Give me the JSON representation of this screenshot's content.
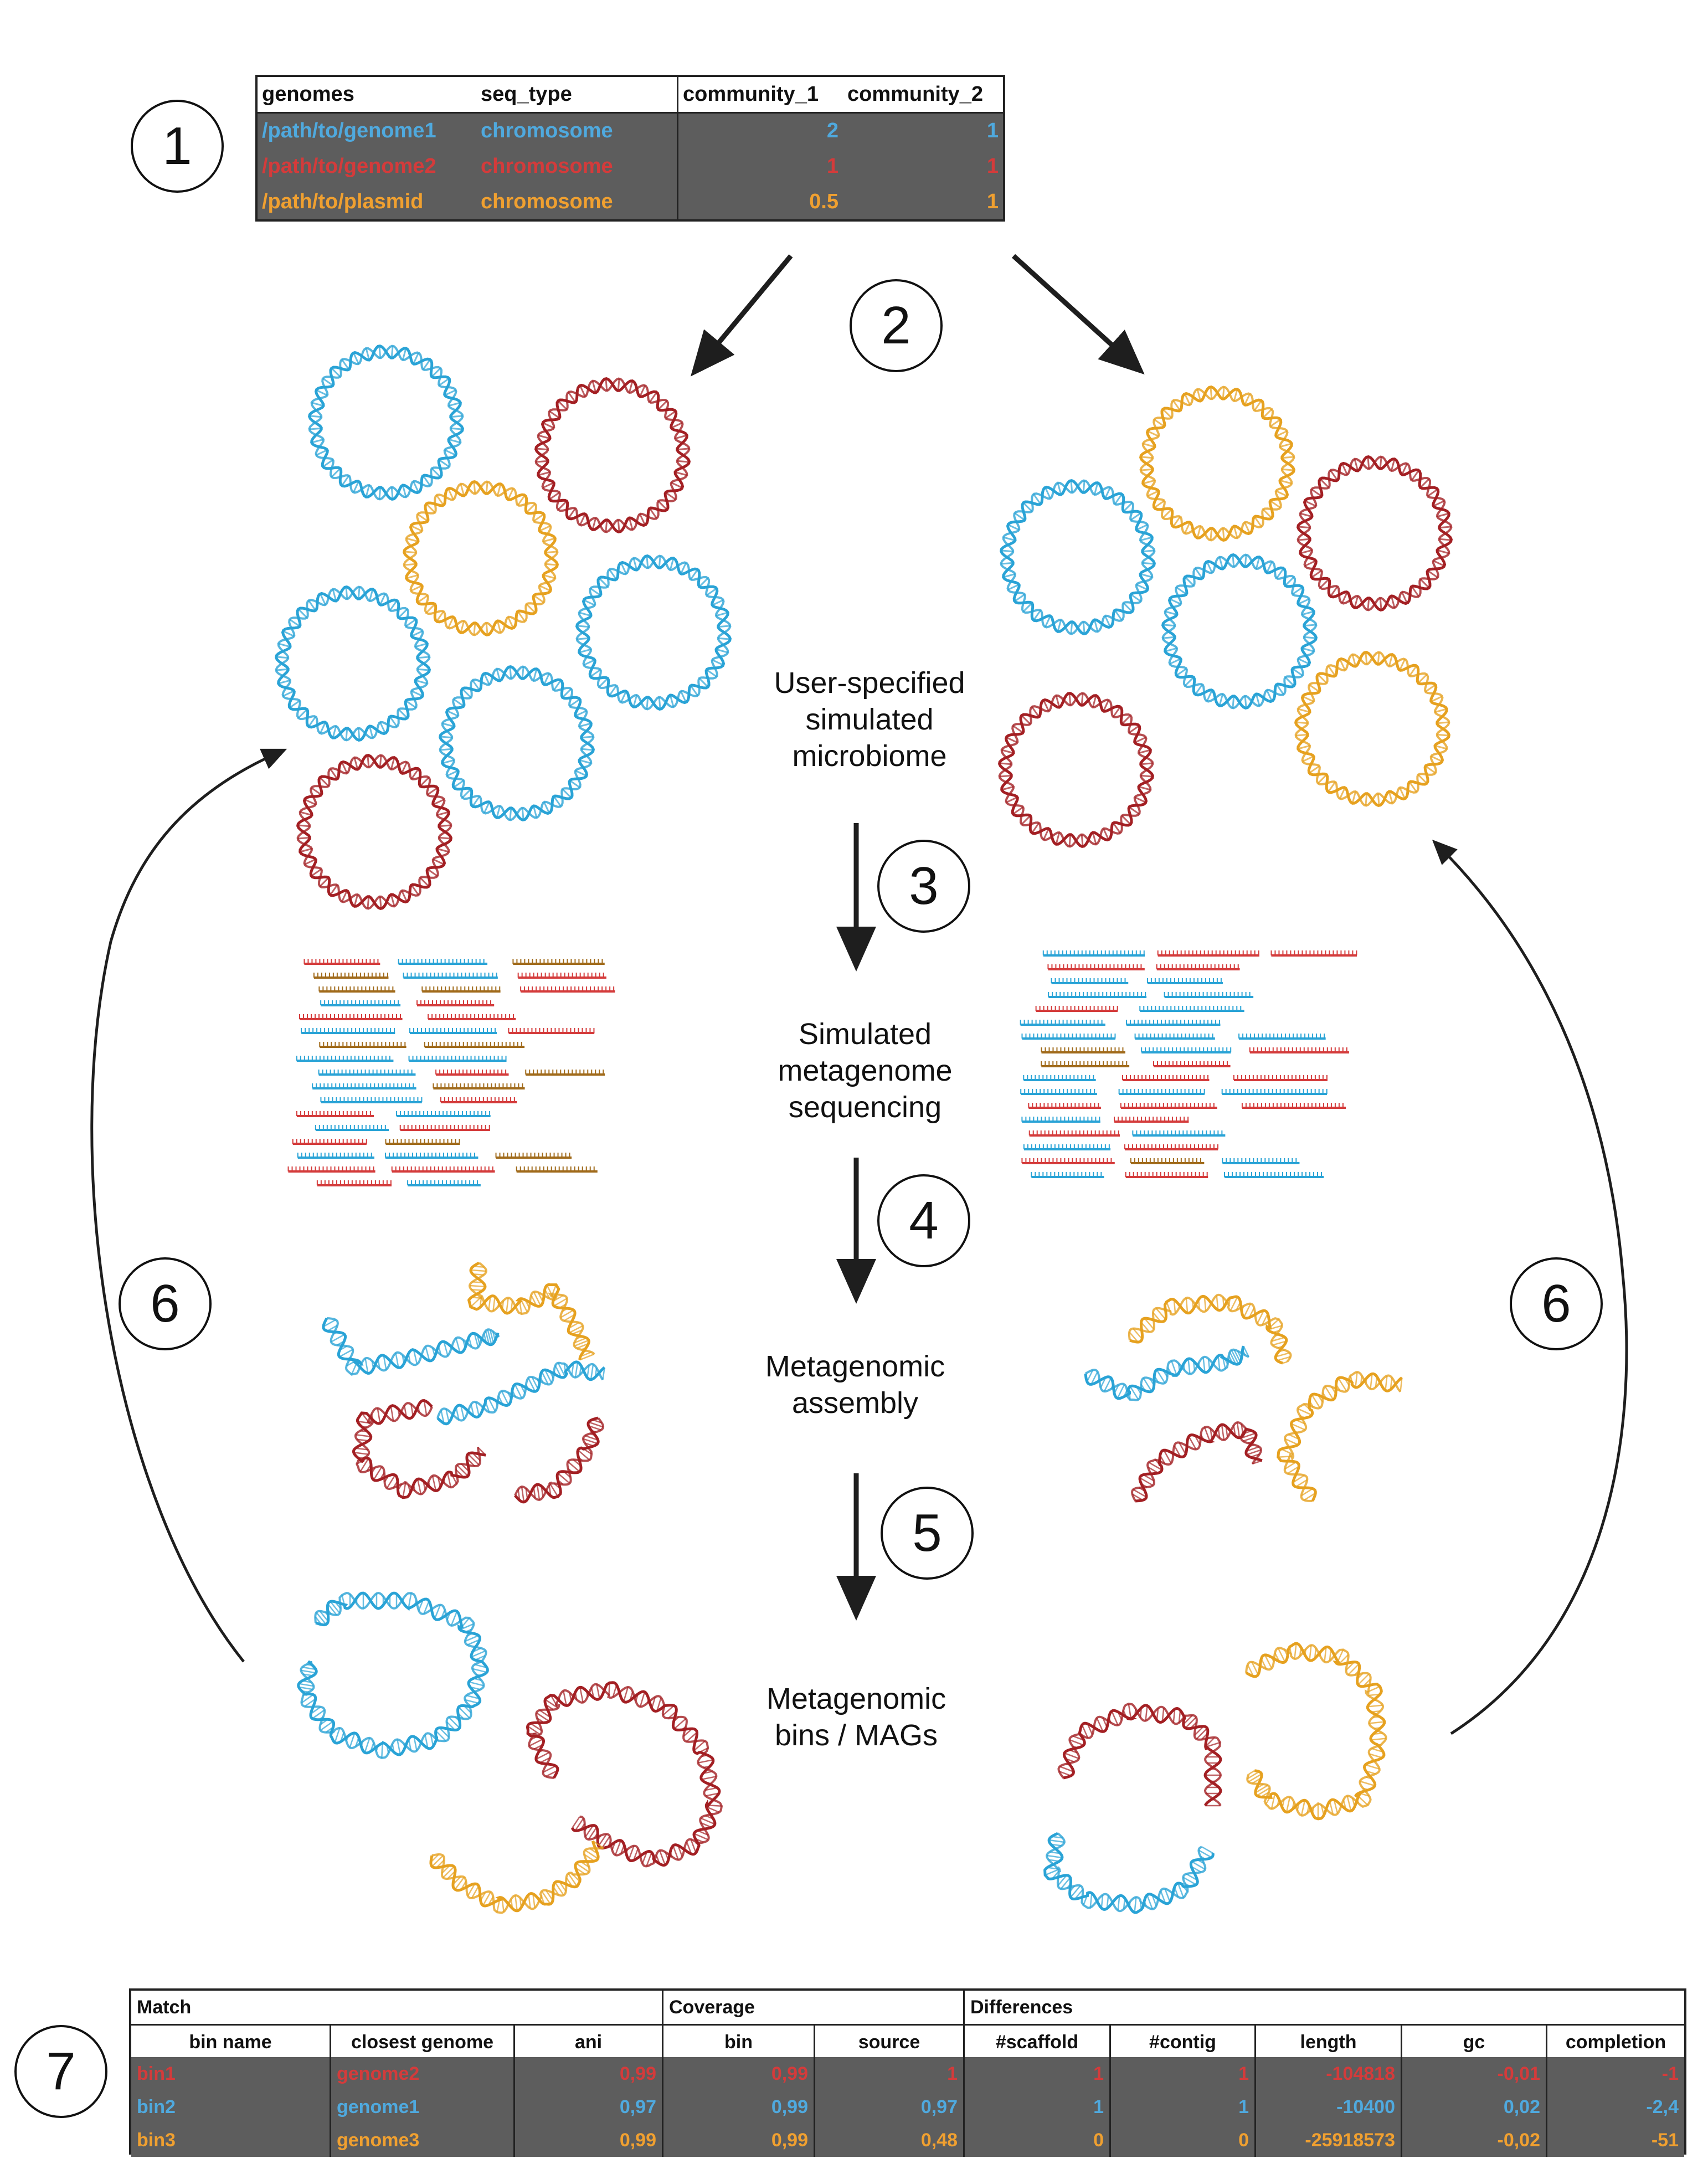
{
  "colors": {
    "blue": "#4fa9de",
    "red": "#d43b3b",
    "orange": "#f0a030",
    "darkred": "#a31f23",
    "strand_blue": "#29a3d6",
    "strand_orange": "#e6a11f",
    "read_brown": "#a06a1a",
    "cell_bg": "#5d5d5d",
    "arrow": "#1e1e1e"
  },
  "icons": {
    "genome_ring": "dna-ring-icon",
    "contig": "dna-strand-icon",
    "read": "sequencing-read-icon"
  },
  "badges": [
    "1",
    "2",
    "3",
    "4",
    "5",
    "6",
    "6",
    "7"
  ],
  "stages": {
    "microbiome": [
      "User-specified",
      "simulated",
      "microbiome"
    ],
    "sequencing": [
      "Simulated",
      "metagenome",
      "sequencing"
    ],
    "assembly": [
      "Metagenomic",
      "assembly"
    ],
    "bins": [
      "Metagenomic",
      "bins / MAGs"
    ]
  },
  "input_table": {
    "headers": [
      "genomes",
      "seq_type",
      "community_1",
      "community_2"
    ],
    "rows": [
      {
        "genome": "/path/to/genome1",
        "seq_type": "chromosome",
        "community_1": "2",
        "community_2": "1",
        "color": "blue"
      },
      {
        "genome": "/path/to/genome2",
        "seq_type": "chromosome",
        "community_1": "1",
        "community_2": "1",
        "color": "red"
      },
      {
        "genome": "/path/to/plasmid",
        "seq_type": "chromosome",
        "community_1": "0.5",
        "community_2": "1",
        "color": "orange"
      }
    ]
  },
  "results_table": {
    "groups": [
      "Match",
      "Coverage",
      "Differences"
    ],
    "headers": [
      "bin name",
      "closest genome",
      "ani",
      "bin",
      "source",
      "#scaffold",
      "#contig",
      "length",
      "gc",
      "completion"
    ],
    "rows": [
      {
        "bin": "bin1",
        "genome": "genome2",
        "ani": "0,99",
        "cov_bin": "0,99",
        "source": "1",
        "scaffold": "1",
        "contig": "1",
        "length": "-104818",
        "gc": "-0,01",
        "completion": "-1",
        "color": "red"
      },
      {
        "bin": "bin2",
        "genome": "genome1",
        "ani": "0,97",
        "cov_bin": "0,99",
        "source": "0,97",
        "scaffold": "1",
        "contig": "1",
        "length": "-10400",
        "gc": "0,02",
        "completion": "-2,4",
        "color": "blue"
      },
      {
        "bin": "bin3",
        "genome": "genome3",
        "ani": "0,99",
        "cov_bin": "0,99",
        "source": "0,48",
        "scaffold": "0",
        "contig": "0",
        "length": "-25918573",
        "gc": "-0,02",
        "completion": "-51",
        "color": "orange"
      }
    ]
  }
}
